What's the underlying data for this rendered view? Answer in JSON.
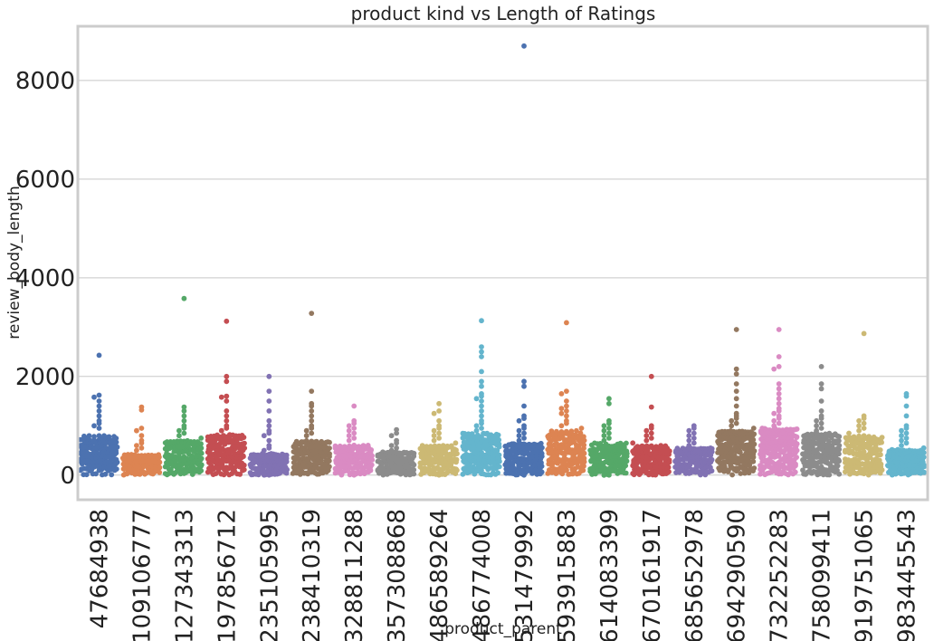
{
  "chart_data": {
    "type": "scatter",
    "subtype": "swarm",
    "title": "product kind vs Length of Ratings",
    "xlabel": "product_parent",
    "ylabel": "review_body_length",
    "ylim": [
      -500,
      9100
    ],
    "yticks": [
      0,
      2000,
      4000,
      6000,
      8000
    ],
    "grid": "horizontal",
    "categories": [
      "47684938",
      "109106777",
      "127343313",
      "197856712",
      "235105995",
      "238410319",
      "328811288",
      "357308868",
      "486589264",
      "486774008",
      "531479992",
      "593915883",
      "614083399",
      "670161917",
      "685652978",
      "694290590",
      "732252283",
      "758099411",
      "919751065",
      "983445543"
    ],
    "colors": [
      "#4c72b0",
      "#dd8452",
      "#55a868",
      "#c44e52",
      "#8172b3",
      "#937860",
      "#da8bc3",
      "#8c8c8c",
      "#ccb974",
      "#64b5cd",
      "#4c72b0",
      "#dd8452",
      "#55a868",
      "#c44e52",
      "#8172b3",
      "#937860",
      "#da8bc3",
      "#8c8c8c",
      "#ccb974",
      "#64b5cd"
    ],
    "groups": [
      {
        "category": "47684938",
        "bulk_max": 800,
        "n_bulk": 190,
        "outliers": [
          2430,
          1620,
          1580,
          1500,
          1400,
          1300,
          1200,
          1100,
          1050,
          1000,
          950
        ]
      },
      {
        "category": "109106777",
        "bulk_max": 420,
        "n_bulk": 130,
        "outliers": [
          1380,
          1320,
          950,
          900,
          800,
          700,
          650,
          600,
          550,
          500
        ]
      },
      {
        "category": "127343313",
        "bulk_max": 700,
        "n_bulk": 160,
        "outliers": [
          3580,
          1380,
          1300,
          1200,
          1100,
          1000,
          950,
          900,
          850,
          800,
          750
        ]
      },
      {
        "category": "197856712",
        "bulk_max": 820,
        "n_bulk": 170,
        "outliers": [
          3120,
          2000,
          1900,
          1600,
          1580,
          1500,
          1300,
          1200,
          1100,
          1000,
          950,
          900
        ]
      },
      {
        "category": "235105995",
        "bulk_max": 450,
        "n_bulk": 140,
        "outliers": [
          2000,
          1700,
          1500,
          1300,
          1100,
          1000,
          900,
          850,
          800,
          700,
          600,
          550,
          500
        ]
      },
      {
        "category": "238410319",
        "bulk_max": 700,
        "n_bulk": 160,
        "outliers": [
          3280,
          1700,
          1450,
          1400,
          1300,
          1200,
          1100,
          1000,
          950,
          900,
          850,
          800
        ]
      },
      {
        "category": "328811288",
        "bulk_max": 620,
        "n_bulk": 150,
        "outliers": [
          1400,
          1100,
          1050,
          1000,
          950,
          900,
          850,
          800,
          750,
          700
        ]
      },
      {
        "category": "357308868",
        "bulk_max": 480,
        "n_bulk": 140,
        "outliers": [
          920,
          850,
          800,
          700,
          650,
          600,
          550,
          500
        ]
      },
      {
        "category": "486589264",
        "bulk_max": 600,
        "n_bulk": 150,
        "outliers": [
          1450,
          1300,
          1250,
          1100,
          1000,
          950,
          900,
          850,
          800,
          750,
          700,
          650
        ]
      },
      {
        "category": "486774008",
        "bulk_max": 850,
        "n_bulk": 210,
        "outliers": [
          3130,
          2600,
          2500,
          2400,
          2100,
          1900,
          1800,
          1650,
          1600,
          1550,
          1500,
          1400,
          1300,
          1200,
          1100,
          1050,
          1000,
          950,
          900
        ]
      },
      {
        "category": "531479992",
        "bulk_max": 650,
        "n_bulk": 170,
        "outliers": [
          8700,
          1900,
          1800,
          1400,
          1200,
          1150,
          1100,
          1000,
          950,
          900,
          850,
          800,
          750,
          700
        ]
      },
      {
        "category": "593915883",
        "bulk_max": 900,
        "n_bulk": 180,
        "outliers": [
          3090,
          1700,
          1650,
          1500,
          1400,
          1350,
          1300,
          1250,
          1200,
          1100,
          1050,
          1000,
          950
        ]
      },
      {
        "category": "614083399",
        "bulk_max": 650,
        "n_bulk": 160,
        "outliers": [
          1550,
          1450,
          1100,
          1050,
          1000,
          950,
          900,
          850,
          800,
          750,
          700
        ]
      },
      {
        "category": "670161917",
        "bulk_max": 600,
        "n_bulk": 160,
        "outliers": [
          2000,
          1380,
          1000,
          950,
          900,
          850,
          800,
          750,
          700,
          650
        ]
      },
      {
        "category": "685652978",
        "bulk_max": 550,
        "n_bulk": 140,
        "outliers": [
          1000,
          950,
          900,
          850,
          800,
          750,
          700,
          650,
          600
        ]
      },
      {
        "category": "694290590",
        "bulk_max": 900,
        "n_bulk": 200,
        "outliers": [
          2950,
          2150,
          2050,
          1850,
          1700,
          1550,
          1400,
          1250,
          1200,
          1150,
          1100,
          1050,
          1000,
          950
        ]
      },
      {
        "category": "732252283",
        "bulk_max": 950,
        "n_bulk": 220,
        "outliers": [
          2950,
          2400,
          2200,
          2150,
          1850,
          1750,
          1650,
          1550,
          1450,
          1350,
          1300,
          1250,
          1200,
          1150,
          1100,
          1050,
          1000
        ]
      },
      {
        "category": "758099411",
        "bulk_max": 850,
        "n_bulk": 180,
        "outliers": [
          2200,
          1850,
          1750,
          1500,
          1300,
          1200,
          1150,
          1100,
          1050,
          1000,
          950,
          900
        ]
      },
      {
        "category": "919751065",
        "bulk_max": 800,
        "n_bulk": 170,
        "outliers": [
          2870,
          1200,
          1150,
          1100,
          1050,
          1000,
          950,
          900,
          850
        ]
      },
      {
        "category": "983445543",
        "bulk_max": 520,
        "n_bulk": 150,
        "outliers": [
          1650,
          1600,
          1400,
          1200,
          1000,
          950,
          900,
          850,
          800,
          750,
          700,
          650,
          600,
          550
        ]
      }
    ]
  }
}
